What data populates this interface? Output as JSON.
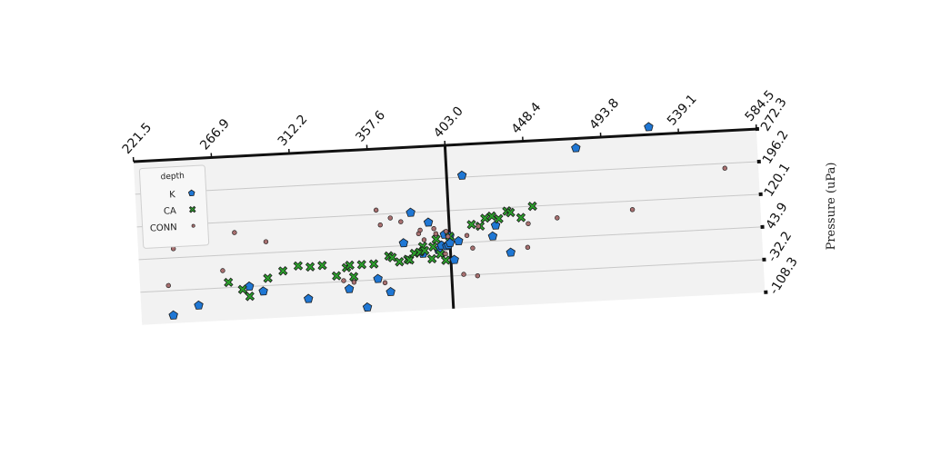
{
  "chart_data": {
    "type": "scatter",
    "title": "",
    "xlabel": "",
    "ylabel": "Pressure (uPa)",
    "xlim": [
      221.5,
      584.5
    ],
    "ylim": [
      -108.3,
      272.3
    ],
    "x_ticks": [
      "221.5",
      "266.9",
      "312.2",
      "357.6",
      "403.0",
      "448.4",
      "493.8",
      "539.1",
      "584.5"
    ],
    "y_ticks": [
      "-108.3",
      "-32.2",
      "43.9",
      "120.1",
      "196.2",
      "272.3"
    ],
    "vline_x": 403.0,
    "grid": "horizontal",
    "legend": {
      "title": "depth",
      "placement": "top-left"
    },
    "series": [
      {
        "name": "K",
        "color": "#1f77d4",
        "marker": "pentagon",
        "points": [
          [
            240,
            -90
          ],
          [
            255,
            -70
          ],
          [
            285,
            -32
          ],
          [
            293,
            -45
          ],
          [
            319,
            -68
          ],
          [
            343,
            -50
          ],
          [
            353,
            -95
          ],
          [
            360,
            -30
          ],
          [
            367,
            -62
          ],
          [
            376,
            50
          ],
          [
            381,
            120
          ],
          [
            387,
            23
          ],
          [
            391,
            95
          ],
          [
            396,
            30
          ],
          [
            398,
            40
          ],
          [
            400,
            65
          ],
          [
            401,
            38
          ],
          [
            402,
            40
          ],
          [
            403,
            60
          ],
          [
            403,
            45
          ],
          [
            405,
            5
          ],
          [
            408,
            48
          ],
          [
            412,
            200
          ],
          [
            428,
            55
          ],
          [
            430,
            80
          ],
          [
            438,
            15
          ],
          [
            479,
            250
          ],
          [
            522,
            290
          ]
        ]
      },
      {
        "name": "CA",
        "color": "#2ca02c",
        "marker": "x",
        "points": [
          [
            273,
            -20
          ],
          [
            281,
            -38
          ],
          [
            285,
            -55
          ],
          [
            296,
            -15
          ],
          [
            305,
            0
          ],
          [
            314,
            10
          ],
          [
            321,
            6
          ],
          [
            328,
            8
          ],
          [
            336,
            -18
          ],
          [
            342,
            0
          ],
          [
            344,
            5
          ],
          [
            346,
            -22
          ],
          [
            351,
            5
          ],
          [
            358,
            5
          ],
          [
            367,
            22
          ],
          [
            369,
            18
          ],
          [
            373,
            7
          ],
          [
            378,
            12
          ],
          [
            379,
            10
          ],
          [
            382,
            25
          ],
          [
            385,
            27
          ],
          [
            387,
            40
          ],
          [
            388,
            30
          ],
          [
            392,
            10
          ],
          [
            393,
            38
          ],
          [
            395,
            55
          ],
          [
            397,
            20
          ],
          [
            400,
            5
          ],
          [
            403,
            60
          ],
          [
            416,
            85
          ],
          [
            421,
            80
          ],
          [
            424,
            98
          ],
          [
            428,
            102
          ],
          [
            432,
            95
          ],
          [
            437,
            112
          ],
          [
            439,
            108
          ],
          [
            445,
            95
          ],
          [
            452,
            120
          ]
        ]
      },
      {
        "name": "CONN",
        "color": "#a87070",
        "marker": "circle",
        "points": [
          [
            238,
            -20
          ],
          [
            242,
            65
          ],
          [
            270,
            8
          ],
          [
            278,
            95
          ],
          [
            296,
            70
          ],
          [
            340,
            -30
          ],
          [
            346,
            -35
          ],
          [
            361,
            130
          ],
          [
            363,
            95
          ],
          [
            364,
            -40
          ],
          [
            369,
            110
          ],
          [
            375,
            100
          ],
          [
            385,
            70
          ],
          [
            386,
            78
          ],
          [
            388,
            55
          ],
          [
            394,
            80
          ],
          [
            395,
            68
          ],
          [
            400,
            20
          ],
          [
            401,
            72
          ],
          [
            402,
            60
          ],
          [
            410,
            -30
          ],
          [
            413,
            60
          ],
          [
            416,
            30
          ],
          [
            418,
            -35
          ],
          [
            420,
            80
          ],
          [
            448,
            25
          ],
          [
            449,
            80
          ],
          [
            466,
            90
          ],
          [
            510,
            100
          ],
          [
            565,
            185
          ]
        ]
      }
    ]
  }
}
